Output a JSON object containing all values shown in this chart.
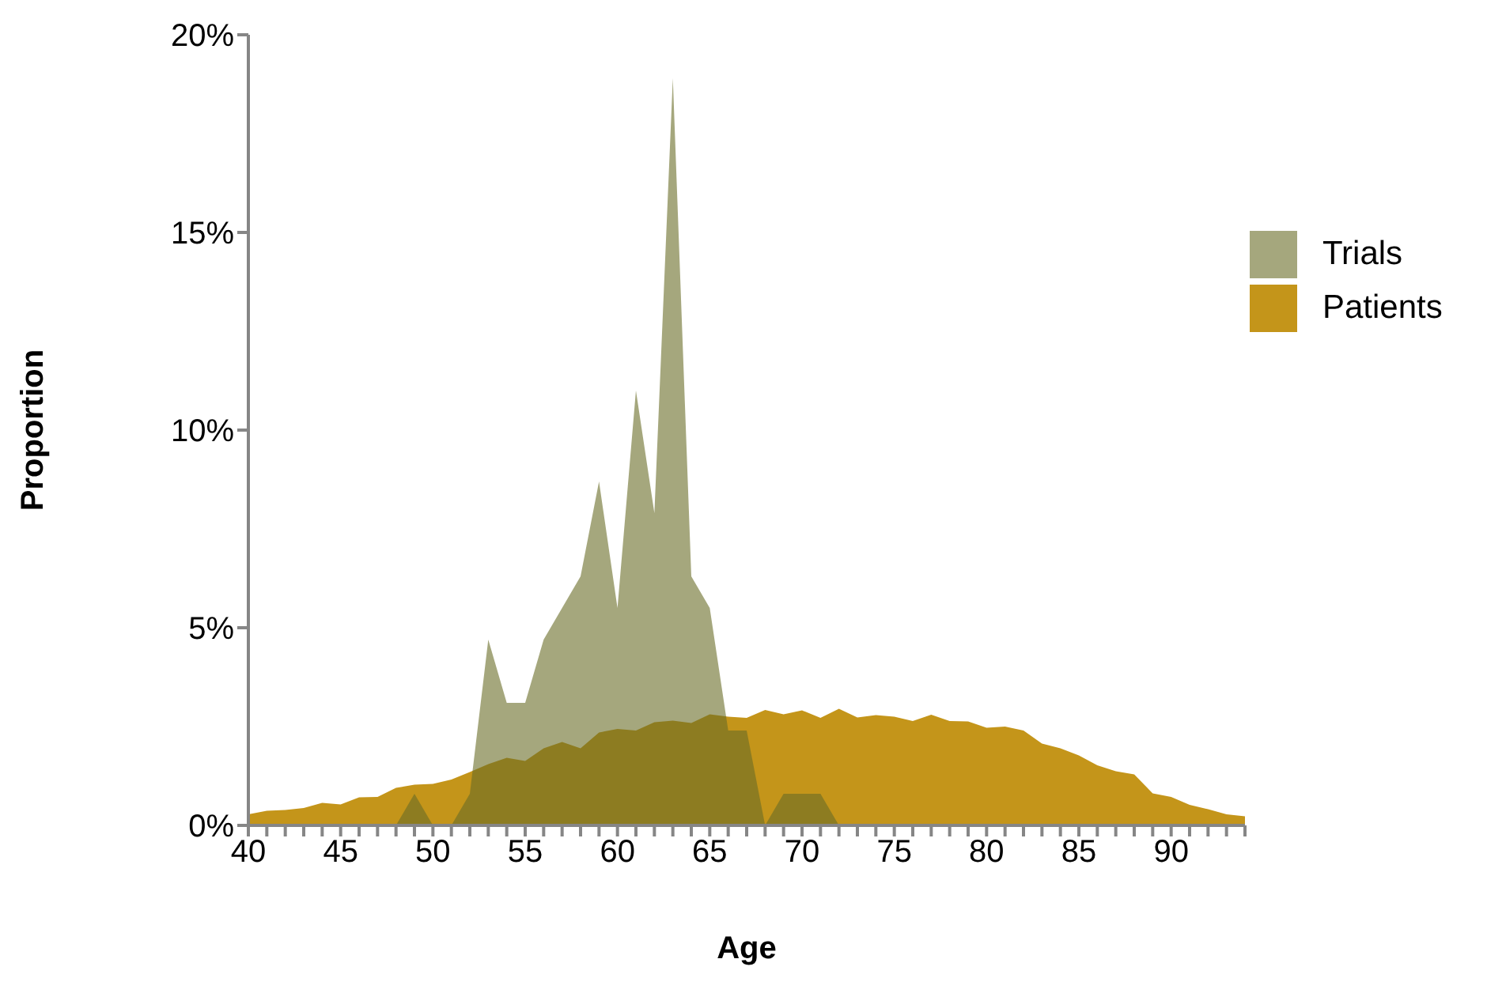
{
  "chart_data": {
    "type": "area",
    "xlabel": "Age",
    "ylabel": "Proportion",
    "x": [
      40,
      41,
      42,
      43,
      44,
      45,
      46,
      47,
      48,
      49,
      50,
      51,
      52,
      53,
      54,
      55,
      56,
      57,
      58,
      59,
      60,
      61,
      62,
      63,
      64,
      65,
      66,
      67,
      68,
      69,
      70,
      71,
      72,
      73,
      74,
      75,
      76,
      77,
      78,
      79,
      80,
      81,
      82,
      83,
      84,
      85,
      86,
      87,
      88,
      89,
      90,
      91,
      92,
      93,
      94
    ],
    "series": [
      {
        "name": "Trials",
        "color": "#a5a77d",
        "values": [
          0,
          0,
          0,
          0,
          0,
          0,
          0,
          0,
          0,
          0.8,
          0,
          0,
          0.8,
          4.7,
          3.1,
          3.1,
          4.7,
          5.5,
          6.3,
          8.7,
          5.5,
          11,
          7.9,
          18.9,
          6.3,
          5.5,
          2.4,
          2.4,
          0,
          0.8,
          0.8,
          0.8,
          0,
          0,
          0,
          0,
          0,
          0,
          0,
          0,
          0,
          0,
          0,
          0,
          0,
          0,
          0,
          0,
          0,
          0,
          0,
          0,
          0,
          0,
          0
        ]
      },
      {
        "name": "Patients",
        "color": "#c4951a",
        "values": [
          0.28,
          0.37,
          0.39,
          0.44,
          0.57,
          0.53,
          0.71,
          0.72,
          0.95,
          1.03,
          1.05,
          1.16,
          1.35,
          1.55,
          1.71,
          1.63,
          1.95,
          2.11,
          1.95,
          2.35,
          2.44,
          2.4,
          2.61,
          2.65,
          2.59,
          2.81,
          2.75,
          2.72,
          2.92,
          2.81,
          2.91,
          2.72,
          2.95,
          2.73,
          2.79,
          2.75,
          2.64,
          2.8,
          2.64,
          2.63,
          2.47,
          2.5,
          2.4,
          2.07,
          1.95,
          1.77,
          1.52,
          1.37,
          1.29,
          0.81,
          0.72,
          0.52,
          0.41,
          0.28,
          0.23
        ]
      }
    ],
    "xlim": [
      40,
      94
    ],
    "xticks": [
      40,
      {
        "value": 41,
        "label": null
      },
      {
        "value": 42,
        "label": null
      },
      {
        "value": 43,
        "label": null
      },
      {
        "value": 44,
        "label": null
      },
      45,
      {
        "value": 46,
        "label": null
      },
      {
        "value": 47,
        "label": null
      },
      {
        "value": 48,
        "label": null
      },
      {
        "value": 49,
        "label": null
      },
      50,
      {
        "value": 51,
        "label": null
      },
      {
        "value": 52,
        "label": null
      },
      {
        "value": 53,
        "label": null
      },
      {
        "value": 54,
        "label": null
      },
      55,
      {
        "value": 56,
        "label": null
      },
      {
        "value": 57,
        "label": null
      },
      {
        "value": 58,
        "label": null
      },
      {
        "value": 59,
        "label": null
      },
      60,
      {
        "value": 61,
        "label": null
      },
      {
        "value": 62,
        "label": null
      },
      {
        "value": 63,
        "label": null
      },
      {
        "value": 64,
        "label": null
      },
      65,
      {
        "value": 66,
        "label": null
      },
      {
        "value": 67,
        "label": null
      },
      {
        "value": 68,
        "label": null
      },
      {
        "value": 69,
        "label": null
      },
      70,
      {
        "value": 71,
        "label": null
      },
      {
        "value": 72,
        "label": null
      },
      {
        "value": 73,
        "label": null
      },
      {
        "value": 74,
        "label": null
      },
      75,
      {
        "value": 76,
        "label": null
      },
      {
        "value": 77,
        "label": null
      },
      {
        "value": 78,
        "label": null
      },
      {
        "value": 79,
        "label": null
      },
      80,
      {
        "value": 81,
        "label": null
      },
      {
        "value": 82,
        "label": null
      },
      {
        "value": 83,
        "label": null
      },
      {
        "value": 84,
        "label": null
      },
      85,
      {
        "value": 86,
        "label": null
      },
      {
        "value": 87,
        "label": null
      },
      {
        "value": 88,
        "label": null
      },
      {
        "value": 89,
        "label": null
      },
      90,
      {
        "value": 91,
        "label": null
      },
      {
        "value": 92,
        "label": null
      },
      {
        "value": 93,
        "label": null
      },
      {
        "value": 94,
        "label": null
      }
    ],
    "ylim": [
      0,
      20
    ],
    "yticks": [
      {
        "value": 0,
        "label": "0%"
      },
      {
        "value": 5,
        "label": "5%"
      },
      {
        "value": 10,
        "label": "10%"
      },
      {
        "value": 15,
        "label": "15%"
      },
      {
        "value": 20,
        "label": "20%"
      }
    ],
    "grid": false,
    "legend": "top right"
  }
}
